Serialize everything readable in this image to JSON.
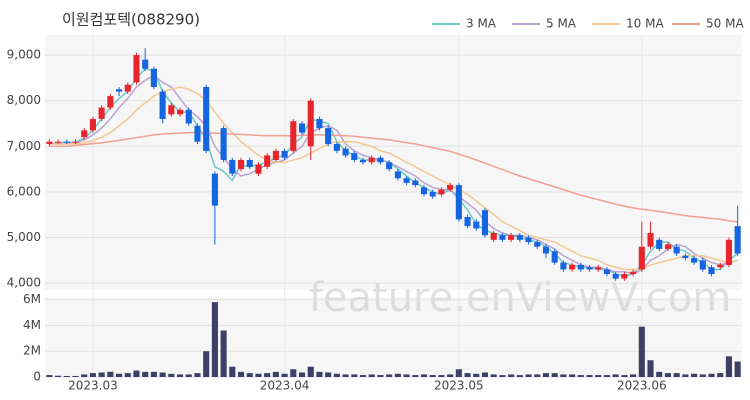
{
  "chart_data": {
    "type": "candlestick",
    "title": "이원컴포텍(088290)",
    "watermark": "feature.enViewV.com",
    "categories": [
      null,
      null,
      null,
      null,
      null,
      "2023.03",
      null,
      null,
      null,
      null,
      null,
      null,
      null,
      null,
      null,
      null,
      null,
      null,
      null,
      null,
      null,
      null,
      null,
      null,
      null,
      null,
      null,
      "2023.04",
      null,
      null,
      null,
      null,
      null,
      null,
      null,
      null,
      null,
      null,
      null,
      null,
      null,
      null,
      null,
      null,
      null,
      null,
      null,
      "2023.05",
      null,
      null,
      null,
      null,
      null,
      null,
      null,
      null,
      null,
      null,
      null,
      null,
      null,
      null,
      null,
      null,
      null,
      null,
      null,
      null,
      "2023.06",
      null,
      null,
      null,
      null,
      null,
      null,
      null,
      null,
      null,
      null,
      null
    ],
    "up_color": "#e8252d",
    "down_color": "#1565e0",
    "open": [
      7050,
      7100,
      7100,
      7080,
      7200,
      7350,
      7600,
      7850,
      8250,
      8200,
      8400,
      8900,
      8700,
      8200,
      7700,
      7700,
      7800,
      7450,
      8300,
      6400,
      7400,
      6700,
      6500,
      6700,
      6400,
      6550,
      6700,
      6900,
      6900,
      7500,
      7000,
      7600,
      7400,
      7050,
      6950,
      6850,
      6700,
      6650,
      6750,
      6650,
      6450,
      6300,
      6250,
      6100,
      6000,
      5950,
      6050,
      6150,
      5450,
      5350,
      5600,
      4950,
      5050,
      4950,
      5050,
      5000,
      4900,
      4800,
      4700,
      4450,
      4300,
      4400,
      4350,
      4300,
      4300,
      4200,
      4100,
      4200,
      4300,
      4800,
      4950,
      4750,
      4800,
      4600,
      4550,
      4500,
      4350,
      4350,
      4400,
      5250
    ],
    "high": [
      7150,
      7150,
      7150,
      7150,
      7400,
      7650,
      7900,
      8150,
      8300,
      8400,
      9050,
      9150,
      8750,
      8250,
      7950,
      7850,
      7850,
      7500,
      8350,
      6450,
      7450,
      6750,
      6750,
      6750,
      6650,
      6850,
      6950,
      6950,
      7600,
      7550,
      8050,
      7650,
      7450,
      7100,
      7000,
      6900,
      6750,
      6800,
      6800,
      6700,
      6500,
      6350,
      6300,
      6150,
      6050,
      6100,
      6200,
      6200,
      5500,
      5400,
      5650,
      5150,
      5100,
      5100,
      5100,
      5050,
      4950,
      4850,
      4750,
      4500,
      4450,
      4450,
      4400,
      4400,
      4350,
      4250,
      4250,
      4300,
      5350,
      5350,
      5000,
      4900,
      4850,
      4650,
      4600,
      4550,
      4400,
      4450,
      5000,
      5700
    ],
    "low": [
      7000,
      7050,
      7050,
      7050,
      7150,
      7300,
      7550,
      7800,
      8100,
      8150,
      8350,
      8650,
      8250,
      7500,
      7650,
      7650,
      7450,
      7050,
      6850,
      4850,
      6650,
      6350,
      6450,
      6500,
      6350,
      6500,
      6650,
      6700,
      6850,
      7250,
      6700,
      7350,
      7000,
      6850,
      6750,
      6650,
      6600,
      6600,
      6600,
      6450,
      6250,
      6150,
      6100,
      5900,
      5850,
      5900,
      6000,
      5350,
      5200,
      5150,
      5000,
      4900,
      4900,
      4900,
      4900,
      4850,
      4750,
      4550,
      4400,
      4250,
      4250,
      4250,
      4250,
      4250,
      4150,
      4050,
      4050,
      4150,
      4250,
      4750,
      4700,
      4700,
      4600,
      4500,
      4400,
      4250,
      4150,
      4300,
      4350,
      4600
    ],
    "close": [
      7100,
      7100,
      7080,
      7100,
      7350,
      7600,
      7850,
      8100,
      8200,
      8350,
      9000,
      8700,
      8300,
      7600,
      7900,
      7800,
      7500,
      7100,
      6900,
      5700,
      6700,
      6400,
      6700,
      6550,
      6600,
      6800,
      6900,
      6750,
      7550,
      7300,
      8000,
      7400,
      7050,
      6900,
      6800,
      6700,
      6650,
      6750,
      6650,
      6500,
      6300,
      6200,
      6150,
      5950,
      5900,
      6050,
      6150,
      5400,
      5250,
      5200,
      5050,
      5100,
      4950,
      5050,
      4950,
      4900,
      4800,
      4650,
      4450,
      4300,
      4400,
      4300,
      4300,
      4350,
      4200,
      4100,
      4200,
      4250,
      4800,
      5100,
      4750,
      4850,
      4650,
      4550,
      4450,
      4300,
      4200,
      4400,
      4950,
      4650
    ],
    "series": [
      {
        "name": "3 MA",
        "color": "#6cc9c9",
        "values": [
          7050,
          7080,
          7090,
          7090,
          7180,
          7350,
          7600,
          7850,
          8050,
          8200,
          8500,
          8700,
          8650,
          8200,
          7950,
          7750,
          7750,
          7450,
          7150,
          6550,
          6450,
          6250,
          6600,
          6550,
          6600,
          6650,
          6750,
          6800,
          7050,
          7200,
          7600,
          7550,
          7500,
          7100,
          6900,
          6800,
          6700,
          6700,
          6700,
          6650,
          6500,
          6350,
          6200,
          6100,
          6000,
          5950,
          6050,
          5850,
          5600,
          5300,
          5150,
          5100,
          5050,
          5050,
          5000,
          4950,
          4900,
          4800,
          4650,
          4450,
          4400,
          4350,
          4350,
          4300,
          4300,
          4200,
          4150,
          4200,
          4400,
          4700,
          4900,
          4900,
          4750,
          4700,
          4550,
          4450,
          4300,
          4300,
          4500,
          4650
        ]
      },
      {
        "name": "5 MA",
        "color": "#b7a3d6",
        "values": [
          7050,
          7060,
          7070,
          7080,
          7140,
          7250,
          7400,
          7600,
          7850,
          8050,
          8300,
          8450,
          8550,
          8400,
          8300,
          8050,
          7800,
          7650,
          7450,
          7000,
          6750,
          6500,
          6350,
          6400,
          6500,
          6600,
          6650,
          6700,
          6850,
          7000,
          7300,
          7400,
          7450,
          7350,
          7050,
          6900,
          6800,
          6750,
          6700,
          6650,
          6550,
          6450,
          6350,
          6200,
          6100,
          6050,
          6050,
          5900,
          5750,
          5600,
          5350,
          5200,
          5100,
          5050,
          5050,
          5000,
          4950,
          4850,
          4750,
          4600,
          4500,
          4400,
          4350,
          4350,
          4300,
          4250,
          4250,
          4200,
          4300,
          4500,
          4600,
          4750,
          4850,
          4800,
          4650,
          4550,
          4450,
          4400,
          4450,
          4500
        ]
      },
      {
        "name": "10 MA",
        "color": "#f3c793",
        "values": [
          7050,
          7050,
          7050,
          7060,
          7080,
          7120,
          7200,
          7300,
          7450,
          7600,
          7800,
          7950,
          8100,
          8200,
          8250,
          8300,
          8250,
          8150,
          8000,
          7750,
          7500,
          7300,
          7100,
          6950,
          6800,
          6700,
          6650,
          6650,
          6700,
          6750,
          6850,
          6950,
          7050,
          7100,
          7100,
          7100,
          7050,
          7000,
          6900,
          6850,
          6750,
          6650,
          6550,
          6450,
          6350,
          6250,
          6150,
          6050,
          5950,
          5800,
          5650,
          5500,
          5350,
          5250,
          5150,
          5050,
          5000,
          4950,
          4900,
          4800,
          4700,
          4600,
          4550,
          4500,
          4400,
          4350,
          4300,
          4300,
          4300,
          4400,
          4450,
          4500,
          4550,
          4600,
          4600,
          4600,
          4550,
          4500,
          4450,
          4500
        ]
      },
      {
        "name": "50 MA",
        "color": "#f2a08e",
        "values": [
          7000,
          7000,
          7000,
          7020,
          7040,
          7060,
          7080,
          7100,
          7130,
          7160,
          7190,
          7220,
          7250,
          7270,
          7280,
          7290,
          7300,
          7300,
          7300,
          7290,
          7280,
          7270,
          7260,
          7250,
          7240,
          7230,
          7230,
          7230,
          7230,
          7240,
          7250,
          7250,
          7250,
          7240,
          7230,
          7220,
          7200,
          7180,
          7160,
          7140,
          7110,
          7080,
          7050,
          7010,
          6970,
          6930,
          6890,
          6830,
          6770,
          6700,
          6630,
          6560,
          6490,
          6420,
          6350,
          6290,
          6230,
          6170,
          6110,
          6050,
          5990,
          5930,
          5880,
          5830,
          5780,
          5730,
          5690,
          5650,
          5620,
          5600,
          5570,
          5540,
          5510,
          5480,
          5460,
          5440,
          5420,
          5400,
          5370,
          5340
        ]
      }
    ],
    "ylim": [
      3850,
      9440
    ],
    "yticks": [
      {
        "value": 4000,
        "label": "4,000"
      },
      {
        "value": 5000,
        "label": "5,000"
      },
      {
        "value": 6000,
        "label": "6,000"
      },
      {
        "value": 7000,
        "label": "7,000"
      },
      {
        "value": 8000,
        "label": "8,000"
      },
      {
        "value": 9000,
        "label": "9,000"
      }
    ],
    "volume": {
      "color": "#3d3f66",
      "values": [
        150000,
        100000,
        80000,
        80000,
        200000,
        300000,
        350000,
        400000,
        250000,
        300000,
        500000,
        400000,
        400000,
        350000,
        250000,
        200000,
        200000,
        300000,
        2000000,
        5800000,
        3600000,
        800000,
        400000,
        300000,
        250000,
        300000,
        400000,
        250000,
        600000,
        350000,
        800000,
        400000,
        350000,
        250000,
        200000,
        200000,
        150000,
        200000,
        150000,
        200000,
        250000,
        200000,
        150000,
        200000,
        150000,
        150000,
        200000,
        600000,
        300000,
        250000,
        350000,
        200000,
        150000,
        200000,
        150000,
        200000,
        200000,
        300000,
        300000,
        200000,
        200000,
        150000,
        150000,
        150000,
        150000,
        200000,
        150000,
        200000,
        3900000,
        1300000,
        400000,
        300000,
        300000,
        200000,
        250000,
        200000,
        250000,
        300000,
        1600000,
        1200000
      ],
      "ylim": [
        0,
        6200000
      ],
      "yticks": [
        0,
        {
          "value": 2000000,
          "label": "2M"
        },
        {
          "value": 4000000,
          "label": "4M"
        },
        {
          "value": 6000000,
          "label": "6M"
        }
      ]
    },
    "grid": true
  }
}
